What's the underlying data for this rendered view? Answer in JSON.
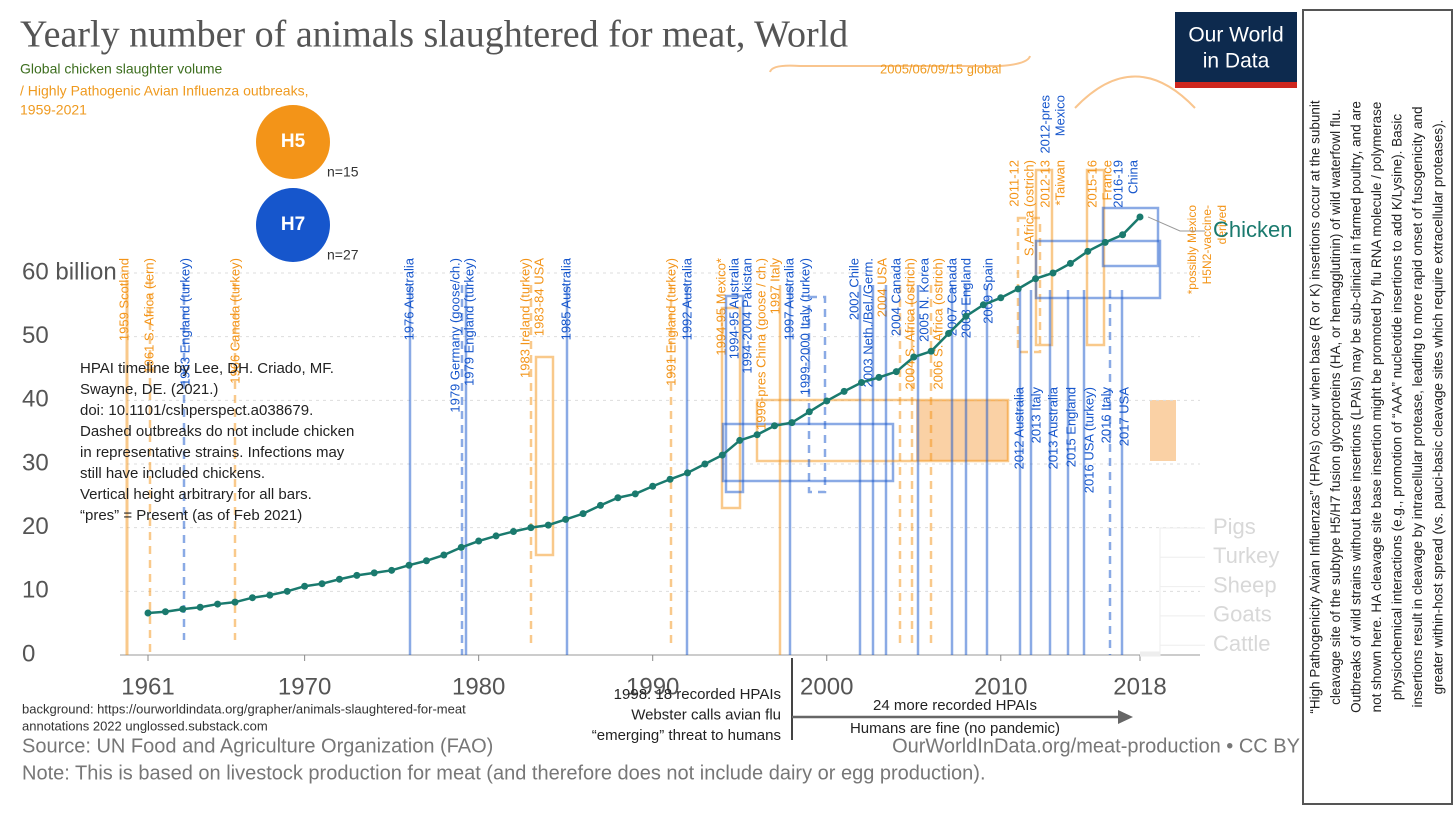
{
  "chart_data": {
    "type": "line",
    "title": "Yearly number of animals slaughtered for meat, World",
    "subtitle": [
      {
        "text": "Global chicken slaughter volume",
        "color": "#3d6e1f"
      },
      {
        "text": "/ Highly Pathogenic Avian Influenza outbreaks,",
        "color": "#ef9a1f"
      },
      {
        "text": "1959-2021",
        "color": "#ef9a1f"
      }
    ],
    "x": [
      1961,
      1962,
      1963,
      1964,
      1965,
      1966,
      1967,
      1968,
      1969,
      1970,
      1971,
      1972,
      1973,
      1974,
      1975,
      1976,
      1977,
      1978,
      1979,
      1980,
      1981,
      1982,
      1983,
      1984,
      1985,
      1986,
      1987,
      1988,
      1989,
      1990,
      1991,
      1992,
      1993,
      1994,
      1995,
      1996,
      1997,
      1998,
      1999,
      2000,
      2001,
      2002,
      2003,
      2004,
      2005,
      2006,
      2007,
      2008,
      2009,
      2010,
      2011,
      2012,
      2013,
      2014,
      2015,
      2016,
      2017,
      2018
    ],
    "series": [
      {
        "name": "Chicken",
        "color": "#1a7a6e",
        "values": [
          6.6,
          6.8,
          7.2,
          7.5,
          8.0,
          8.3,
          9.0,
          9.4,
          10.0,
          10.8,
          11.2,
          11.9,
          12.5,
          12.9,
          13.3,
          14.1,
          14.8,
          15.7,
          16.9,
          17.9,
          18.7,
          19.4,
          20.0,
          20.4,
          21.3,
          22.2,
          23.5,
          24.7,
          25.3,
          26.5,
          27.6,
          28.6,
          30.0,
          31.4,
          33.7,
          34.6,
          36.0,
          36.5,
          38.2,
          39.9,
          41.4,
          42.8,
          43.6,
          44.5,
          46.8,
          47.7,
          50.5,
          53.2,
          55.0,
          56.1,
          57.5,
          59.1,
          60.0,
          61.5,
          63.4,
          64.8,
          66.0,
          68.8
        ]
      }
    ],
    "faded_series_labels": [
      "Pigs",
      "Turkey",
      "Sheep",
      "Goats",
      "Cattle"
    ],
    "xlim": [
      1961,
      2018
    ],
    "xticks": [
      1961,
      1970,
      1980,
      1990,
      2000,
      2010,
      2018
    ],
    "ylim": [
      0,
      70
    ],
    "yticks": [
      0,
      10,
      20,
      30,
      40,
      50,
      {
        "value": 60,
        "label": "60 billion"
      }
    ],
    "grid": true
  },
  "legend_badges": [
    {
      "label": "H5",
      "count": "n=15",
      "color": "#f39418"
    },
    {
      "label": "H7",
      "count": "n=27",
      "color": "#1656cc"
    }
  ],
  "outbreaks": [
    {
      "label": [
        "1959 Scotland"
      ],
      "subtype": "H5"
    },
    {
      "label": [
        "1961 S. Africa (tern)"
      ],
      "subtype": "H5"
    },
    {
      "label": [
        "1963 England (turkey)"
      ],
      "subtype": "H7"
    },
    {
      "label": [
        "1966 Canada (turkey)"
      ],
      "subtype": "H5"
    },
    {
      "label": [
        "1976 Australia"
      ],
      "subtype": "H7"
    },
    {
      "label": [
        "1979 Germany (goose/ch.)"
      ],
      "subtype": "H7"
    },
    {
      "label": [
        "1979 England (turkey)"
      ],
      "subtype": "H7"
    },
    {
      "label": [
        "1983 Ireland (turkey)"
      ],
      "subtype": "H5"
    },
    {
      "label": [
        "1983-84 USA"
      ],
      "subtype": "H5"
    },
    {
      "label": [
        "1985 Australia"
      ],
      "subtype": "H7"
    },
    {
      "label": [
        "1991 England (turkey)"
      ],
      "subtype": "H5"
    },
    {
      "label": [
        "1992 Australia"
      ],
      "subtype": "H7"
    },
    {
      "label": [
        "1994-95 Mexico*"
      ],
      "subtype": "H5"
    },
    {
      "label": [
        "1994-95 Australia"
      ],
      "subtype": "H7"
    },
    {
      "label": [
        "1994-2004 Pakistan"
      ],
      "subtype": "H7"
    },
    {
      "label": [
        "1996-pres China (goose / ch.)"
      ],
      "subtype": "H5"
    },
    {
      "label": [
        "1997 Italy"
      ],
      "subtype": "H5"
    },
    {
      "label": [
        "1997 Australia"
      ],
      "subtype": "H7"
    },
    {
      "label": [
        "1999-2000 Italy (turkey)"
      ],
      "subtype": "H7"
    },
    {
      "label": [
        "2002 Chile"
      ],
      "subtype": "H7"
    },
    {
      "label": [
        "2003 Neth./Bel./Germ."
      ],
      "subtype": "H7"
    },
    {
      "label": [
        "2004 USA"
      ],
      "subtype": "H5"
    },
    {
      "label": [
        "2004 Canada"
      ],
      "subtype": "H7"
    },
    {
      "label": [
        "2004 S. Africa (ostrich)"
      ],
      "subtype": "H5"
    },
    {
      "label": [
        "2005 N. Korea"
      ],
      "subtype": "H7"
    },
    {
      "label": [
        "2006 S. Africa (ostrich)"
      ],
      "subtype": "H5"
    },
    {
      "label": [
        "2007 Canada"
      ],
      "subtype": "H7"
    },
    {
      "label": [
        "2008 England"
      ],
      "subtype": "H7"
    },
    {
      "label": [
        "2009 Spain"
      ],
      "subtype": "H7"
    },
    {
      "label": [
        "2011-12",
        "S.Africa (ostrich)"
      ],
      "subtype": "H5"
    },
    {
      "label": [
        "2012-13",
        "*Taiwan"
      ],
      "subtype": "H5"
    },
    {
      "label": [
        "2012-pres",
        "Mexico"
      ],
      "subtype": "H7"
    },
    {
      "label": [
        "2015-16",
        "France"
      ],
      "subtype": "H5"
    },
    {
      "label": [
        "2016-19",
        "China"
      ],
      "subtype": "H7"
    },
    {
      "label": [
        "*possibly Mexico",
        "H5N2-vaccine-",
        "derived"
      ],
      "subtype": "H5"
    },
    {
      "label": [
        "2012 Australia"
      ],
      "subtype": "H7"
    },
    {
      "label": [
        "2013 Italy"
      ],
      "subtype": "H7"
    },
    {
      "label": [
        "2013 Australia"
      ],
      "subtype": "H7"
    },
    {
      "label": [
        "2015 England"
      ],
      "subtype": "H7"
    },
    {
      "label": [
        "2016 USA (turkey)"
      ],
      "subtype": "H7"
    },
    {
      "label": [
        "2016 Italy"
      ],
      "subtype": "H7"
    },
    {
      "label": [
        "2017 USA"
      ],
      "subtype": "H7"
    }
  ],
  "annotations": {
    "global_label": "2005/06/09/15 global",
    "notes": [
      "HPAI timeline by Lee, DH. Criado, MF.",
      "Swayne, DE. (2021.)",
      "doi: 10.1101/cshperspect.a038679.",
      "Dashed outbreaks do not include chicken",
      "in representative strains. Infections may",
      "still have included chickens.",
      "Vertical height arbitrary for all bars.",
      "“pres” = Present (as of Feb 2021)"
    ],
    "event_1998": [
      "1998: 18 recorded HPAIs",
      "Webster calls avian flu",
      "“emerging” threat to humans"
    ],
    "arrow_text": [
      "24 more recorded HPAIs",
      "Humans are fine (no pandemic)"
    ]
  },
  "footer": {
    "background": [
      "background: https://ourworldindata.org/grapher/animals-slaughtered-for-meat",
      "annotations 2022 unglossed.substack.com"
    ],
    "source": "Source: UN Food and Agriculture Organization (FAO)",
    "url": "OurWorldInData.org/meat-production • CC BY",
    "note": "Note: This is based on livestock production for meat (and therefore does not include dairy or egg production)."
  },
  "logo": [
    "Our World",
    "in Data"
  ],
  "side_note": [
    "“High Pathogenicity Avian Influenzas” (HPAIs) occur when base (R or K) insertions occur at the subunit",
    "cleavage site of the subtype H5/H7 fusion glycoproteins (HA, or hemagglutinin) of wild waterfowl flu.",
    "Outbreaks of wild strains without base insertions (LPAIs) may be sub-clinical in farmed poultry, and are",
    "not shown here. HA cleavage site base insertion might be promoted by flu RNA molecule / polymerase",
    "physiochemical interactions (e.g., promotion of “AAA” nucleotide insertions to add K/Lysine). Basic",
    "insertions result in cleavage by intracellular protease, leading to more rapid onset of fusogenicity and",
    "greater within-host spread (vs. pauci-basic cleavage sites which require extracellular proteases)."
  ]
}
